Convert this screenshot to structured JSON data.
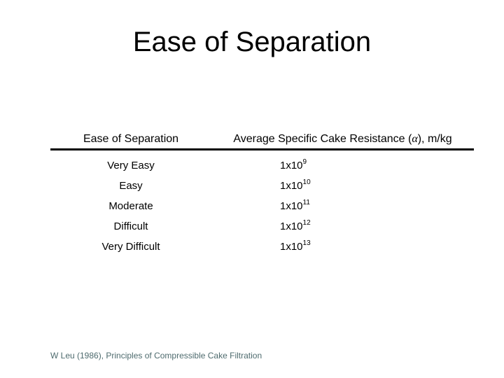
{
  "slide": {
    "title": "Ease of Separation"
  },
  "table": {
    "col1_header": "Ease of Separation",
    "col2_header": {
      "prefix": "Average Specific Cake Resistance (",
      "alpha": "α",
      "suffix": "), m/kg"
    },
    "rows": [
      {
        "ease": "Very Easy",
        "value_base": "1x10",
        "value_exp": "9"
      },
      {
        "ease": "Easy",
        "value_base": "1x10",
        "value_exp": "10"
      },
      {
        "ease": "Moderate",
        "value_base": "1x10",
        "value_exp": "11"
      },
      {
        "ease": "Difficult",
        "value_base": "1x10",
        "value_exp": "12"
      },
      {
        "ease": "Very Difficult",
        "value_base": "1x10",
        "value_exp": "13"
      }
    ]
  },
  "citation": {
    "text": "W Leu (1986), Principles of Compressible Cake Filtration"
  },
  "colors": {
    "background": "#ffffff",
    "text": "#000000",
    "header_rule": "#000000",
    "citation_text": "#4e6b6e"
  }
}
